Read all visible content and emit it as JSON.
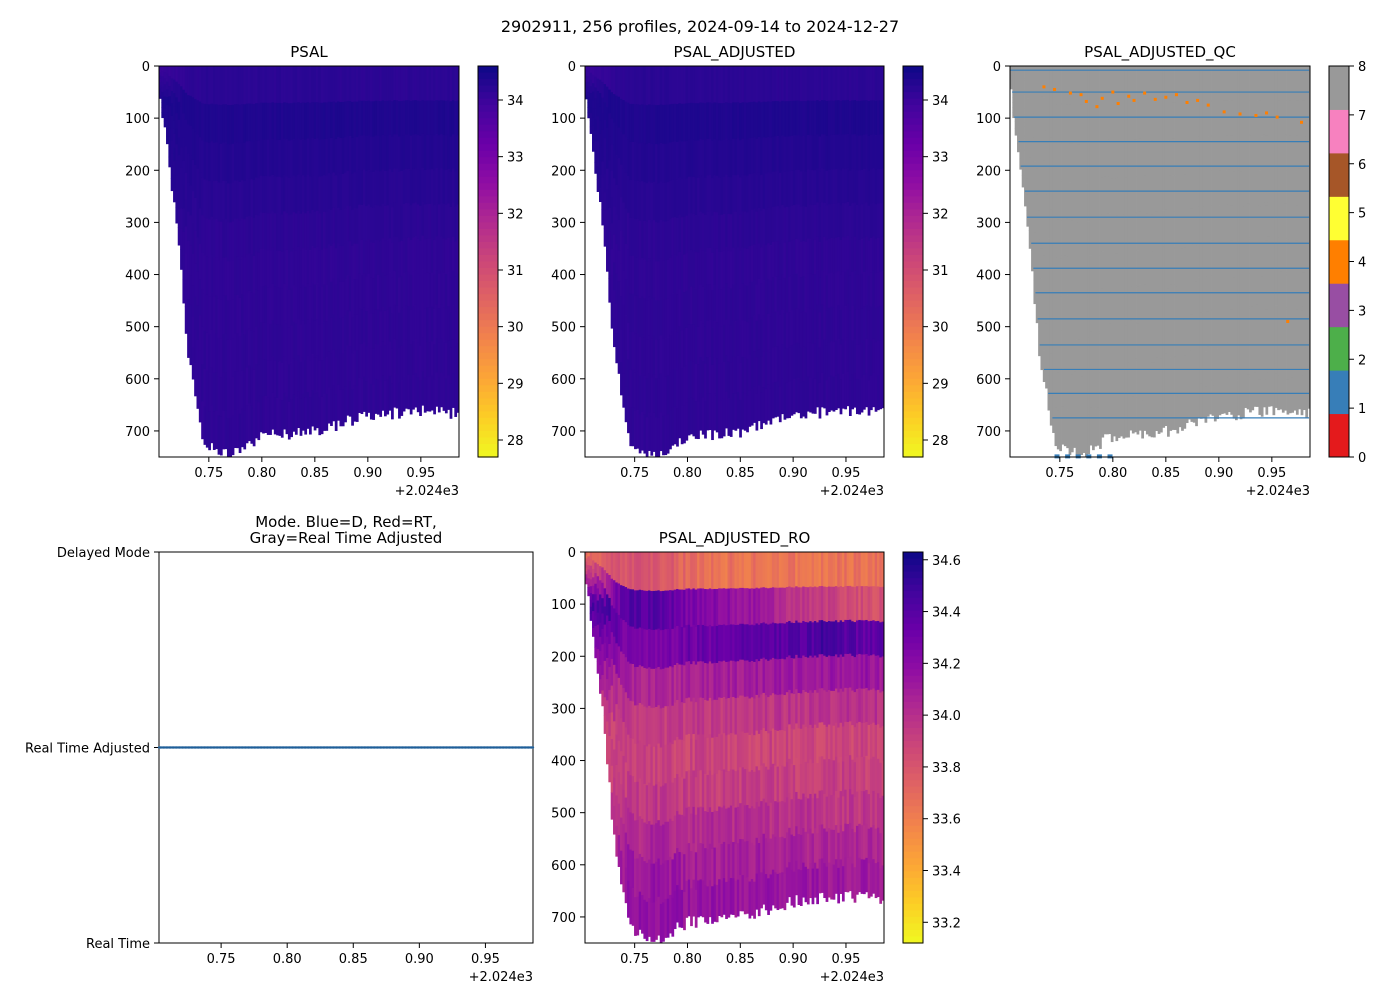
{
  "figure_title": "2902911, 256 profiles, 2024-09-14 to 2024-12-27",
  "x_offset_label": "+2.024e3",
  "chart_data": [
    {
      "id": "psal",
      "type": "heatmap",
      "title": "PSAL",
      "xlim": [
        0.703,
        0.986
      ],
      "ylim": [
        750,
        0
      ],
      "x_ticks": [
        0.75,
        0.8,
        0.85,
        0.9,
        0.95
      ],
      "x_tick_labels": [
        "0.75",
        "0.80",
        "0.85",
        "0.90",
        "0.95"
      ],
      "y_ticks": [
        0,
        100,
        200,
        300,
        400,
        500,
        600,
        700
      ],
      "y_tick_labels": [
        "0",
        "100",
        "200",
        "300",
        "400",
        "500",
        "600",
        "700"
      ],
      "bottom_depth_profile": {
        "x": [
          0.703,
          0.72,
          0.73,
          0.745,
          0.77,
          0.79,
          0.8,
          0.85,
          0.9,
          0.95,
          0.985
        ],
        "depth": [
          35,
          310,
          540,
          720,
          750,
          720,
          710,
          700,
          670,
          660,
          665
        ]
      },
      "value_range_in_data": [
        33.9,
        34.6
      ],
      "colorbar": {
        "cmap": "plasma_r",
        "range": [
          27.7,
          34.6
        ],
        "ticks": [
          28,
          29,
          30,
          31,
          32,
          33,
          34
        ],
        "tick_labels": [
          "28",
          "29",
          "30",
          "31",
          "32",
          "33",
          "34"
        ]
      }
    },
    {
      "id": "psal_adjusted",
      "type": "heatmap",
      "title": "PSAL_ADJUSTED",
      "xlim": [
        0.703,
        0.986
      ],
      "ylim": [
        750,
        0
      ],
      "x_ticks": [
        0.75,
        0.8,
        0.85,
        0.9,
        0.95
      ],
      "x_tick_labels": [
        "0.75",
        "0.80",
        "0.85",
        "0.90",
        "0.95"
      ],
      "y_ticks": [
        0,
        100,
        200,
        300,
        400,
        500,
        600,
        700
      ],
      "y_tick_labels": [
        "0",
        "100",
        "200",
        "300",
        "400",
        "500",
        "600",
        "700"
      ],
      "bottom_depth_profile": {
        "x": [
          0.703,
          0.72,
          0.73,
          0.745,
          0.77,
          0.79,
          0.8,
          0.85,
          0.9,
          0.95,
          0.985
        ],
        "depth": [
          35,
          310,
          540,
          720,
          750,
          720,
          710,
          700,
          670,
          660,
          665
        ]
      },
      "value_range_in_data": [
        33.9,
        34.6
      ],
      "colorbar": {
        "cmap": "plasma_r",
        "range": [
          27.7,
          34.6
        ],
        "ticks": [
          28,
          29,
          30,
          31,
          32,
          33,
          34
        ],
        "tick_labels": [
          "28",
          "29",
          "30",
          "31",
          "32",
          "33",
          "34"
        ]
      }
    },
    {
      "id": "psal_adjusted_qc",
      "type": "heatmap",
      "title": "PSAL_ADJUSTED_QC",
      "xlim": [
        0.703,
        0.986
      ],
      "ylim": [
        750,
        0
      ],
      "x_ticks": [
        0.75,
        0.8,
        0.85,
        0.9,
        0.95
      ],
      "x_tick_labels": [
        "0.75",
        "0.80",
        "0.85",
        "0.90",
        "0.95"
      ],
      "y_ticks": [
        0,
        100,
        200,
        300,
        400,
        500,
        600,
        700
      ],
      "y_tick_labels": [
        "0",
        "100",
        "200",
        "300",
        "400",
        "500",
        "600",
        "700"
      ],
      "bottom_depth_profile": {
        "x": [
          0.703,
          0.72,
          0.73,
          0.745,
          0.77,
          0.79,
          0.8,
          0.85,
          0.9,
          0.95,
          0.985
        ],
        "depth": [
          35,
          310,
          540,
          720,
          750,
          720,
          710,
          700,
          670,
          660,
          665
        ]
      },
      "dominant_flag": 8,
      "flag1_depths": [
        8,
        50,
        98,
        145,
        192,
        240,
        290,
        340,
        388,
        435,
        485,
        535,
        582,
        628,
        675
      ],
      "flag4_points": [
        {
          "x": 0.735,
          "y": 40
        },
        {
          "x": 0.745,
          "y": 45
        },
        {
          "x": 0.76,
          "y": 52
        },
        {
          "x": 0.77,
          "y": 55
        },
        {
          "x": 0.775,
          "y": 68
        },
        {
          "x": 0.785,
          "y": 78
        },
        {
          "x": 0.79,
          "y": 62
        },
        {
          "x": 0.8,
          "y": 50
        },
        {
          "x": 0.805,
          "y": 72
        },
        {
          "x": 0.815,
          "y": 58
        },
        {
          "x": 0.82,
          "y": 66
        },
        {
          "x": 0.83,
          "y": 52
        },
        {
          "x": 0.84,
          "y": 64
        },
        {
          "x": 0.85,
          "y": 60
        },
        {
          "x": 0.86,
          "y": 55
        },
        {
          "x": 0.87,
          "y": 70
        },
        {
          "x": 0.88,
          "y": 66
        },
        {
          "x": 0.89,
          "y": 75
        },
        {
          "x": 0.905,
          "y": 88
        },
        {
          "x": 0.92,
          "y": 92
        },
        {
          "x": 0.935,
          "y": 95
        },
        {
          "x": 0.945,
          "y": 90
        },
        {
          "x": 0.955,
          "y": 98
        },
        {
          "x": 0.965,
          "y": 490
        },
        {
          "x": 0.978,
          "y": 108
        }
      ],
      "colorbar": {
        "cmap": "qc_flags",
        "range": [
          0,
          8
        ],
        "colors": [
          "#e41a1c",
          "#377eb8",
          "#4daf4a",
          "#984ea3",
          "#ff7f00",
          "#ffff33",
          "#a65628",
          "#f781bf",
          "#999999"
        ],
        "ticks": [
          0,
          1,
          2,
          3,
          4,
          5,
          6,
          7,
          8
        ],
        "tick_labels": [
          "0",
          "1",
          "2",
          "3",
          "4",
          "5",
          "6",
          "7",
          "8"
        ]
      }
    },
    {
      "id": "mode",
      "type": "scatter",
      "title_line1": "Mode. Blue=D, Red=RT,",
      "title_line2": "Gray=Real Time Adjusted",
      "xlim": [
        0.703,
        0.986
      ],
      "x_ticks": [
        0.75,
        0.8,
        0.85,
        0.9,
        0.95
      ],
      "x_tick_labels": [
        "0.75",
        "0.80",
        "0.85",
        "0.90",
        "0.95"
      ],
      "y_categories": [
        "Real Time",
        "Real Time Adjusted",
        "Delayed Mode"
      ],
      "series": [
        {
          "name": "Real Time Adjusted",
          "x_range": [
            0.703,
            0.986
          ],
          "count": 256,
          "y_category": "Real Time Adjusted"
        }
      ]
    },
    {
      "id": "psal_adjusted_ro",
      "type": "heatmap",
      "title": "PSAL_ADJUSTED_RO",
      "xlim": [
        0.703,
        0.986
      ],
      "ylim": [
        750,
        0
      ],
      "x_ticks": [
        0.75,
        0.8,
        0.85,
        0.9,
        0.95
      ],
      "x_tick_labels": [
        "0.75",
        "0.80",
        "0.85",
        "0.90",
        "0.95"
      ],
      "y_ticks": [
        0,
        100,
        200,
        300,
        400,
        500,
        600,
        700
      ],
      "y_tick_labels": [
        "0",
        "100",
        "200",
        "300",
        "400",
        "500",
        "600",
        "700"
      ],
      "bottom_depth_profile": {
        "x": [
          0.703,
          0.72,
          0.73,
          0.745,
          0.77,
          0.79,
          0.8,
          0.85,
          0.9,
          0.95,
          0.985
        ],
        "depth": [
          35,
          310,
          540,
          720,
          750,
          720,
          710,
          700,
          670,
          660,
          665
        ]
      },
      "value_profile": {
        "depth": [
          0,
          40,
          100,
          150,
          250,
          350,
          450,
          550,
          650,
          750
        ],
        "value": [
          33.65,
          33.95,
          34.45,
          34.3,
          34.05,
          33.88,
          33.92,
          34.05,
          34.15,
          34.2
        ]
      },
      "colorbar": {
        "cmap": "plasma_r",
        "range": [
          33.12,
          34.63
        ],
        "ticks": [
          33.2,
          33.4,
          33.6,
          33.8,
          34.0,
          34.2,
          34.4,
          34.6
        ],
        "tick_labels": [
          "33.2",
          "33.4",
          "33.6",
          "33.8",
          "34.0",
          "34.2",
          "34.4",
          "34.6"
        ]
      }
    }
  ]
}
